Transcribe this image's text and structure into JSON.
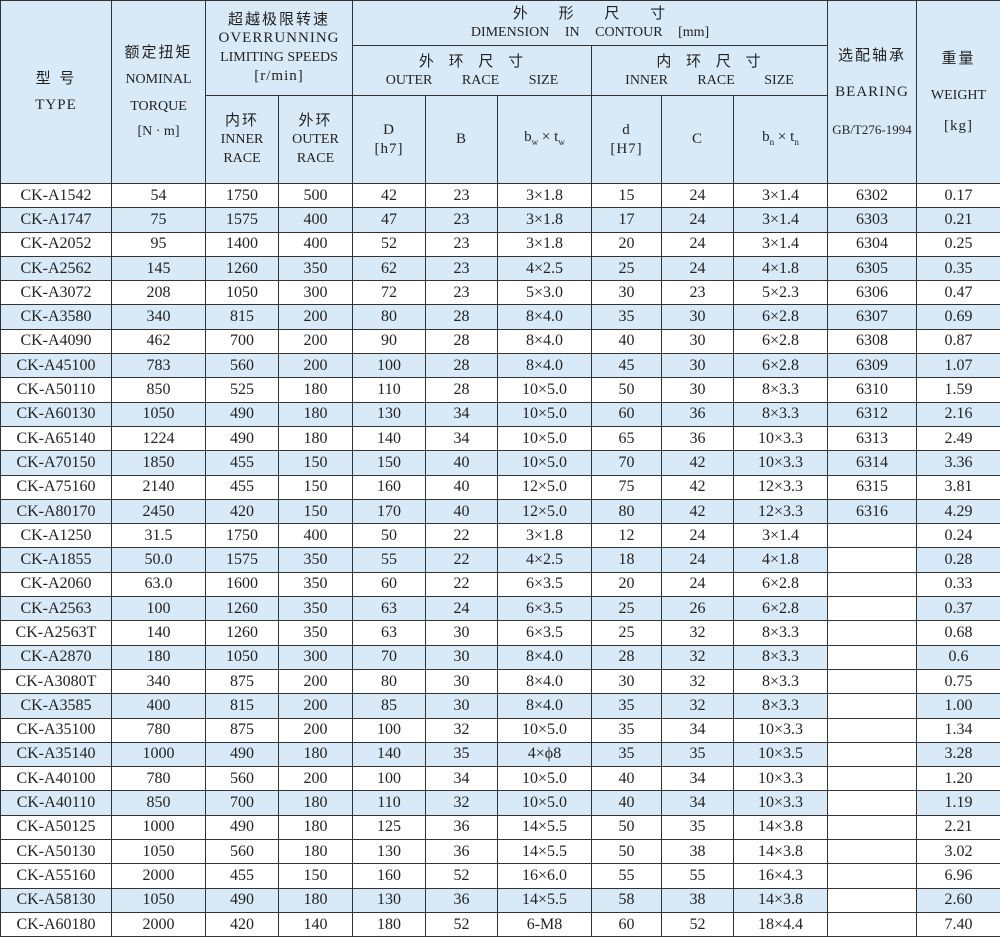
{
  "header": {
    "type": {
      "cn": "型 号",
      "en": "TYPE"
    },
    "torque": {
      "cn": "额定扭矩",
      "en1": "NOMINAL",
      "en2": "TORQUE",
      "unit": "[N · m]"
    },
    "speeds": {
      "cn": "超越极限转速",
      "en1": "OVERRUNNING",
      "en2": "LIMITING SPEEDS",
      "unit": "[r/min]",
      "inner": {
        "cn": "内环",
        "en1": "INNER",
        "en2": "RACE"
      },
      "outer": {
        "cn": "外环",
        "en1": "OUTER",
        "en2": "RACE"
      }
    },
    "dimension": {
      "cn": "外 形 尺 寸",
      "en": "DIMENSION  IN  CONTOUR  [mm]"
    },
    "outer_race": {
      "cn": "外 环 尺 寸",
      "en": "OUTER RACE SIZE",
      "D": "D",
      "D_tol": "[h7]",
      "B": "B",
      "bw": "b",
      "bw_sub": "w",
      "x": " × ",
      "tw": "t",
      "tw_sub": "w"
    },
    "inner_race": {
      "cn": "内 环 尺 寸",
      "en": "INNER RACE SIZE",
      "d": "d",
      "d_tol": "[H7]",
      "C": "C",
      "bn": "b",
      "bn_sub": "n",
      "x": " × ",
      "tn": "t",
      "tn_sub": "n"
    },
    "bearing": {
      "cn": "选配轴承",
      "en": "BEARING",
      "std": "GB/T276-1994"
    },
    "weight": {
      "cn": "重量",
      "en": "WEIGHT",
      "unit": "[kg]"
    }
  },
  "rows": [
    {
      "type": "CK-A1542",
      "torque": "54",
      "inner": "1750",
      "outer": "500",
      "D": "42",
      "B": "23",
      "bwtw": "3×1.8",
      "d": "15",
      "C": "24",
      "bntn": "3×1.4",
      "bearing": "6302",
      "weight": "0.17",
      "shaded": false
    },
    {
      "type": "CK-A1747",
      "torque": "75",
      "inner": "1575",
      "outer": "400",
      "D": "47",
      "B": "23",
      "bwtw": "3×1.8",
      "d": "17",
      "C": "24",
      "bntn": "3×1.4",
      "bearing": "6303",
      "weight": "0.21",
      "shaded": true
    },
    {
      "type": "CK-A2052",
      "torque": "95",
      "inner": "1400",
      "outer": "400",
      "D": "52",
      "B": "23",
      "bwtw": "3×1.8",
      "d": "20",
      "C": "24",
      "bntn": "3×1.4",
      "bearing": "6304",
      "weight": "0.25",
      "shaded": false
    },
    {
      "type": "CK-A2562",
      "torque": "145",
      "inner": "1260",
      "outer": "350",
      "D": "62",
      "B": "23",
      "bwtw": "4×2.5",
      "d": "25",
      "C": "24",
      "bntn": "4×1.8",
      "bearing": "6305",
      "weight": "0.35",
      "shaded": true
    },
    {
      "type": "CK-A3072",
      "torque": "208",
      "inner": "1050",
      "outer": "300",
      "D": "72",
      "B": "23",
      "bwtw": "5×3.0",
      "d": "30",
      "C": "23",
      "bntn": "5×2.3",
      "bearing": "6306",
      "weight": "0.47",
      "shaded": false
    },
    {
      "type": "CK-A3580",
      "torque": "340",
      "inner": "815",
      "outer": "200",
      "D": "80",
      "B": "28",
      "bwtw": "8×4.0",
      "d": "35",
      "C": "30",
      "bntn": "6×2.8",
      "bearing": "6307",
      "weight": "0.69",
      "shaded": true
    },
    {
      "type": "CK-A4090",
      "torque": "462",
      "inner": "700",
      "outer": "200",
      "D": "90",
      "B": "28",
      "bwtw": "8×4.0",
      "d": "40",
      "C": "30",
      "bntn": "6×2.8",
      "bearing": "6308",
      "weight": "0.87",
      "shaded": false
    },
    {
      "type": "CK-A45100",
      "torque": "783",
      "inner": "560",
      "outer": "200",
      "D": "100",
      "B": "28",
      "bwtw": "8×4.0",
      "d": "45",
      "C": "30",
      "bntn": "6×2.8",
      "bearing": "6309",
      "weight": "1.07",
      "shaded": true
    },
    {
      "type": "CK-A50110",
      "torque": "850",
      "inner": "525",
      "outer": "180",
      "D": "110",
      "B": "28",
      "bwtw": "10×5.0",
      "d": "50",
      "C": "30",
      "bntn": "8×3.3",
      "bearing": "6310",
      "weight": "1.59",
      "shaded": false
    },
    {
      "type": "CK-A60130",
      "torque": "1050",
      "inner": "490",
      "outer": "180",
      "D": "130",
      "B": "34",
      "bwtw": "10×5.0",
      "d": "60",
      "C": "36",
      "bntn": "8×3.3",
      "bearing": "6312",
      "weight": "2.16",
      "shaded": true
    },
    {
      "type": "CK-A65140",
      "torque": "1224",
      "inner": "490",
      "outer": "180",
      "D": "140",
      "B": "34",
      "bwtw": "10×5.0",
      "d": "65",
      "C": "36",
      "bntn": "10×3.3",
      "bearing": "6313",
      "weight": "2.49",
      "shaded": false
    },
    {
      "type": "CK-A70150",
      "torque": "1850",
      "inner": "455",
      "outer": "150",
      "D": "150",
      "B": "40",
      "bwtw": "10×5.0",
      "d": "70",
      "C": "42",
      "bntn": "10×3.3",
      "bearing": "6314",
      "weight": "3.36",
      "shaded": true
    },
    {
      "type": "CK-A75160",
      "torque": "2140",
      "inner": "455",
      "outer": "150",
      "D": "160",
      "B": "40",
      "bwtw": "12×5.0",
      "d": "75",
      "C": "42",
      "bntn": "12×3.3",
      "bearing": "6315",
      "weight": "3.81",
      "shaded": false
    },
    {
      "type": "CK-A80170",
      "torque": "2450",
      "inner": "420",
      "outer": "150",
      "D": "170",
      "B": "40",
      "bwtw": "12×5.0",
      "d": "80",
      "C": "42",
      "bntn": "12×3.3",
      "bearing": "6316",
      "weight": "4.29",
      "shaded": true
    },
    {
      "type": "CK-A1250",
      "torque": "31.5",
      "inner": "1750",
      "outer": "400",
      "D": "50",
      "B": "22",
      "bwtw": "3×1.8",
      "d": "12",
      "C": "24",
      "bntn": "3×1.4",
      "bearing": "",
      "weight": "0.24",
      "shaded": false
    },
    {
      "type": "CK-A1855",
      "torque": "50.0",
      "inner": "1575",
      "outer": "350",
      "D": "55",
      "B": "22",
      "bwtw": "4×2.5",
      "d": "18",
      "C": "24",
      "bntn": "4×1.8",
      "bearing": "",
      "weight": "0.28",
      "shaded": true
    },
    {
      "type": "CK-A2060",
      "torque": "63.0",
      "inner": "1600",
      "outer": "350",
      "D": "60",
      "B": "22",
      "bwtw": "6×3.5",
      "d": "20",
      "C": "24",
      "bntn": "6×2.8",
      "bearing": "",
      "weight": "0.33",
      "shaded": false
    },
    {
      "type": "CK-A2563",
      "torque": "100",
      "inner": "1260",
      "outer": "350",
      "D": "63",
      "B": "24",
      "bwtw": "6×3.5",
      "d": "25",
      "C": "26",
      "bntn": "6×2.8",
      "bearing": "",
      "weight": "0.37",
      "shaded": true
    },
    {
      "type": "CK-A2563T",
      "torque": "140",
      "inner": "1260",
      "outer": "350",
      "D": "63",
      "B": "30",
      "bwtw": "6×3.5",
      "d": "25",
      "C": "32",
      "bntn": "8×3.3",
      "bearing": "",
      "weight": "0.68",
      "shaded": false
    },
    {
      "type": "CK-A2870",
      "torque": "180",
      "inner": "1050",
      "outer": "300",
      "D": "70",
      "B": "30",
      "bwtw": "8×4.0",
      "d": "28",
      "C": "32",
      "bntn": "8×3.3",
      "bearing": "",
      "weight": "0.6",
      "shaded": true
    },
    {
      "type": "CK-A3080T",
      "torque": "340",
      "inner": "875",
      "outer": "200",
      "D": "80",
      "B": "30",
      "bwtw": "8×4.0",
      "d": "30",
      "C": "32",
      "bntn": "8×3.3",
      "bearing": "",
      "weight": "0.75",
      "shaded": false
    },
    {
      "type": "CK-A3585",
      "torque": "400",
      "inner": "815",
      "outer": "200",
      "D": "85",
      "B": "30",
      "bwtw": "8×4.0",
      "d": "35",
      "C": "32",
      "bntn": "8×3.3",
      "bearing": "",
      "weight": "1.00",
      "shaded": true
    },
    {
      "type": "CK-A35100",
      "torque": "780",
      "inner": "875",
      "outer": "200",
      "D": "100",
      "B": "32",
      "bwtw": "10×5.0",
      "d": "35",
      "C": "34",
      "bntn": "10×3.3",
      "bearing": "",
      "weight": "1.34",
      "shaded": false
    },
    {
      "type": "CK-A35140",
      "torque": "1000",
      "inner": "490",
      "outer": "180",
      "D": "140",
      "B": "35",
      "bwtw": "4×ϕ8",
      "d": "35",
      "C": "35",
      "bntn": "10×3.5",
      "bearing": "",
      "weight": "3.28",
      "shaded": true
    },
    {
      "type": "CK-A40100",
      "torque": "780",
      "inner": "560",
      "outer": "200",
      "D": "100",
      "B": "34",
      "bwtw": "10×5.0",
      "d": "40",
      "C": "34",
      "bntn": "10×3.3",
      "bearing": "",
      "weight": "1.20",
      "shaded": false
    },
    {
      "type": "CK-A40110",
      "torque": "850",
      "inner": "700",
      "outer": "180",
      "D": "110",
      "B": "32",
      "bwtw": "10×5.0",
      "d": "40",
      "C": "34",
      "bntn": "10×3.3",
      "bearing": "",
      "weight": "1.19",
      "shaded": true
    },
    {
      "type": "CK-A50125",
      "torque": "1000",
      "inner": "490",
      "outer": "180",
      "D": "125",
      "B": "36",
      "bwtw": "14×5.5",
      "d": "50",
      "C": "35",
      "bntn": "14×3.8",
      "bearing": "",
      "weight": "2.21",
      "shaded": false
    },
    {
      "type": "CK-A50130",
      "torque": "1050",
      "inner": "560",
      "outer": "180",
      "D": "130",
      "B": "36",
      "bwtw": "14×5.5",
      "d": "50",
      "C": "38",
      "bntn": "14×3.8",
      "bearing": "",
      "weight": "3.02",
      "shaded": false
    },
    {
      "type": "CK-A55160",
      "torque": "2000",
      "inner": "455",
      "outer": "150",
      "D": "160",
      "B": "52",
      "bwtw": "16×6.0",
      "d": "55",
      "C": "55",
      "bntn": "16×4.3",
      "bearing": "",
      "weight": "6.96",
      "shaded": false
    },
    {
      "type": "CK-A58130",
      "torque": "1050",
      "inner": "490",
      "outer": "180",
      "D": "130",
      "B": "36",
      "bwtw": "14×5.5",
      "d": "58",
      "C": "38",
      "bntn": "14×3.8",
      "bearing": "",
      "weight": "2.60",
      "shaded": true
    },
    {
      "type": "CK-A60180",
      "torque": "2000",
      "inner": "420",
      "outer": "140",
      "D": "180",
      "B": "52",
      "bwtw": "6-M8",
      "d": "60",
      "C": "52",
      "bntn": "18×4.4",
      "bearing": "",
      "weight": "7.40",
      "shaded": false
    }
  ]
}
